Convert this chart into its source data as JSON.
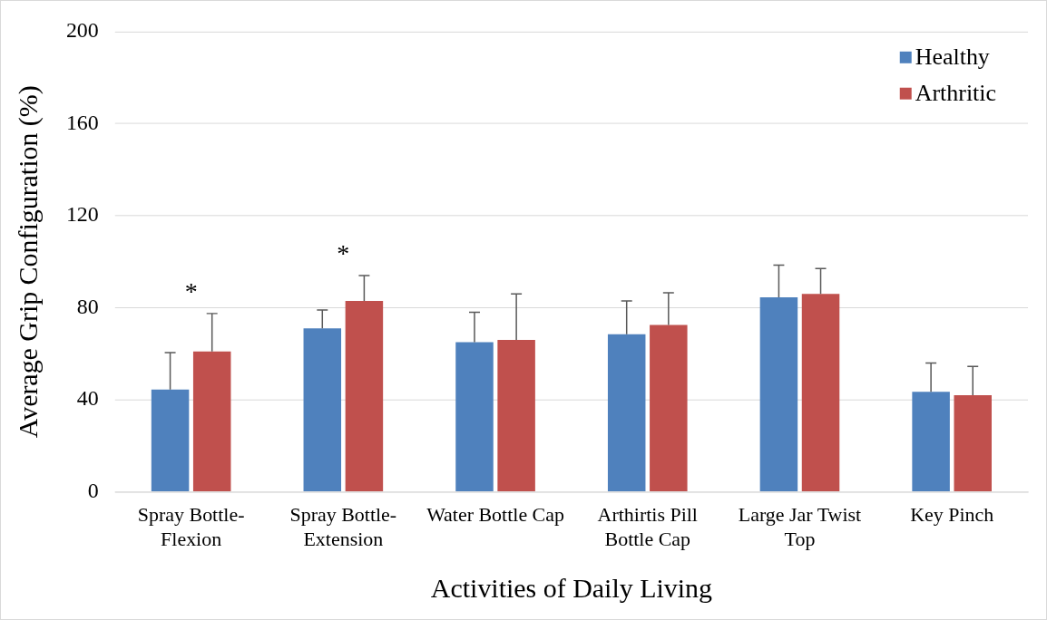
{
  "chart_data": {
    "type": "bar",
    "xlabel": "Activities of Daily Living",
    "ylabel": "Average Grip Configuration (%)",
    "categories": [
      "Spray Bottle-Flexion",
      "Spray Bottle-Extension",
      "Water Bottle Cap",
      "Arthirtis Pill Bottle Cap",
      "Large Jar Twist Top",
      "Key Pinch"
    ],
    "series": [
      {
        "name": "Healthy",
        "color": "#4f81bd",
        "values": [
          44.5,
          71,
          65,
          68.5,
          84.5,
          43.5
        ],
        "errors": [
          [
            44.5,
            60.5
          ],
          [
            71,
            79
          ],
          [
            65,
            78
          ],
          [
            68.5,
            83
          ],
          [
            84.5,
            98.5
          ],
          [
            43.5,
            56
          ]
        ]
      },
      {
        "name": "Arthritic",
        "color": "#c0504d",
        "values": [
          61,
          83,
          66,
          72.5,
          86,
          42
        ],
        "errors": [
          [
            61,
            77.5
          ],
          [
            83,
            94
          ],
          [
            66,
            86
          ],
          [
            72.5,
            86.5
          ],
          [
            86,
            97
          ],
          [
            42,
            54.5
          ]
        ]
      }
    ],
    "ylim": [
      0,
      200
    ],
    "yticks": [
      0,
      40,
      80,
      120,
      160,
      200
    ],
    "grid": "y",
    "legend": "top right",
    "annotations": [
      "*",
      "*"
    ]
  }
}
